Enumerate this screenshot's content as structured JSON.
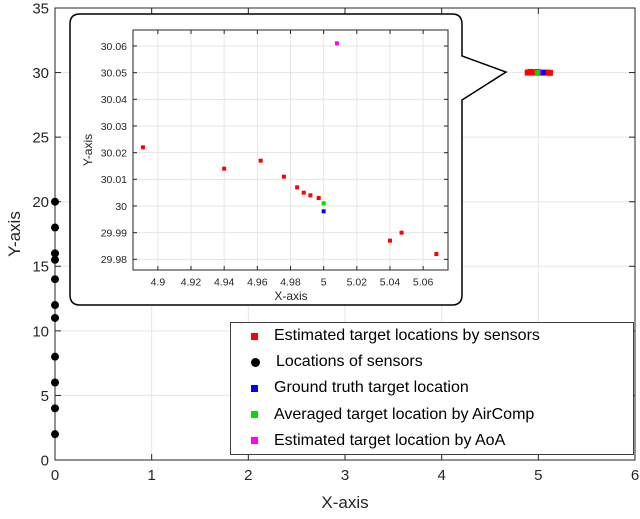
{
  "colors": {
    "background": "#ffffff",
    "grid": "#e6e6e6",
    "axis": "#262626",
    "tick_label": "#262626",
    "red": "#ff0000",
    "black": "#000000",
    "blue": "#0000ff",
    "green": "#00dd00",
    "magenta": "#ff00ff"
  },
  "chart_data": [
    {
      "type": "scatter",
      "role": "main",
      "title": "",
      "xlabel": "X-axis",
      "ylabel": "Y-axis",
      "xlim": [
        0,
        6
      ],
      "ylim": [
        0,
        35
      ],
      "xticks": [
        "0",
        "1",
        "2",
        "3",
        "4",
        "5",
        "6"
      ],
      "yticks": [
        "0",
        "5",
        "10",
        "15",
        "20",
        "25",
        "30",
        "35"
      ],
      "grid": true,
      "legend_position": "lower-right-inside",
      "series": [
        {
          "name": "Estimated target locations by sensors",
          "marker": "square",
          "color": "#ff0000",
          "size": 6,
          "points": [
            [
              4.89,
              30.0
            ],
            [
              4.92,
              30.05
            ],
            [
              4.95,
              30.0
            ],
            [
              4.97,
              30.0
            ],
            [
              4.99,
              30.05
            ],
            [
              5.0,
              30.0
            ],
            [
              5.02,
              30.0
            ],
            [
              5.04,
              30.0
            ],
            [
              5.06,
              30.0
            ],
            [
              5.09,
              30.0
            ],
            [
              5.12,
              29.98
            ]
          ]
        },
        {
          "name": "Locations of sensors",
          "marker": "circle",
          "color": "#000000",
          "size": 8,
          "points": [
            [
              0,
              2
            ],
            [
              0,
              4
            ],
            [
              0,
              6
            ],
            [
              0,
              8
            ],
            [
              0,
              11
            ],
            [
              0,
              12
            ],
            [
              0,
              14
            ],
            [
              0,
              15.5
            ],
            [
              0,
              16
            ],
            [
              0,
              18
            ],
            [
              0,
              20
            ]
          ]
        },
        {
          "name": "Estimated target location by AoA",
          "marker": "square",
          "color": "#ff00ff",
          "size": 5,
          "points": [
            [
              5.01,
              30.06
            ]
          ]
        },
        {
          "name": "Averaged target location by AirComp",
          "marker": "square",
          "color": "#00dd00",
          "size": 5,
          "points": [
            [
              4.99,
              30.0
            ]
          ]
        },
        {
          "name": "Ground truth target location",
          "marker": "square",
          "color": "#0000ff",
          "size": 5,
          "points": [
            [
              5.05,
              30.0
            ]
          ]
        }
      ]
    },
    {
      "type": "scatter",
      "role": "inset-zoom",
      "title": "",
      "xlabel": "X-axis",
      "ylabel": "Y-axis",
      "xlim": [
        4.885,
        5.075
      ],
      "ylim": [
        29.976,
        30.066
      ],
      "xticks": [
        "4.9",
        "4.92",
        "4.94",
        "4.96",
        "4.98",
        "5",
        "5.02",
        "5.04",
        "5.06"
      ],
      "yticks": [
        "29.98",
        "29.99",
        "30",
        "30.01",
        "30.02",
        "30.03",
        "30.04",
        "30.05",
        "30.06"
      ],
      "grid": true,
      "series": [
        {
          "name": "Estimated target locations by sensors",
          "marker": "square",
          "color": "#ff0000",
          "size": 4,
          "points": [
            [
              4.891,
              30.022
            ],
            [
              4.94,
              30.014
            ],
            [
              4.962,
              30.017
            ],
            [
              4.976,
              30.011
            ],
            [
              4.984,
              30.007
            ],
            [
              4.988,
              30.005
            ],
            [
              4.992,
              30.004
            ],
            [
              4.997,
              30.003
            ],
            [
              5.04,
              29.987
            ],
            [
              5.047,
              29.99
            ],
            [
              5.068,
              29.982
            ]
          ]
        },
        {
          "name": "Estimated target location by AoA",
          "marker": "square",
          "color": "#ff00ff",
          "size": 4,
          "points": [
            [
              5.008,
              30.061
            ]
          ]
        },
        {
          "name": "Averaged target location by AirComp",
          "marker": "square",
          "color": "#00dd00",
          "size": 4,
          "points": [
            [
              5.0,
              30.001
            ]
          ]
        },
        {
          "name": "Ground truth target location",
          "marker": "square",
          "color": "#0000ff",
          "size": 4,
          "points": [
            [
              5.0,
              29.998
            ]
          ]
        }
      ]
    }
  ],
  "legend": {
    "items": [
      {
        "label": "Estimated target locations by sensors",
        "marker": "square",
        "color": "#ff0000"
      },
      {
        "label": "Locations of sensors",
        "marker": "circle",
        "color": "#000000"
      },
      {
        "label": "Ground truth target location",
        "marker": "square",
        "color": "#0000ff"
      },
      {
        "label": "Averaged target location by AirComp",
        "marker": "square",
        "color": "#00dd00"
      },
      {
        "label": "Estimated target location by AoA",
        "marker": "square",
        "color": "#ff00ff"
      }
    ]
  }
}
